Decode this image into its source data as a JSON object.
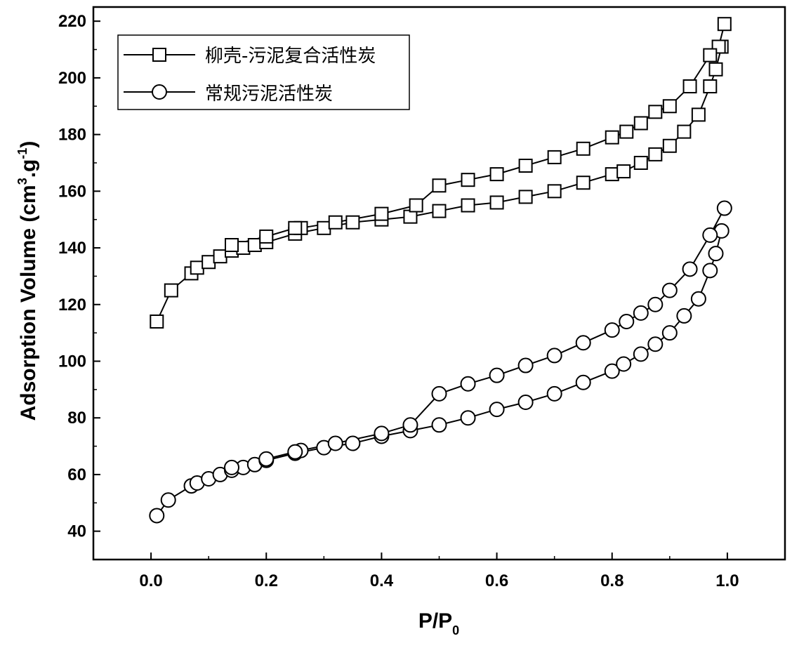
{
  "chart_data": {
    "type": "line",
    "xlabel": "P/P",
    "xlabel_sub": "0",
    "ylabel": "Adsorption Volume (cm",
    "ylabel_sup1": "3",
    "ylabel_mid": ".g",
    "ylabel_sup2": "-1",
    "ylabel_end": ")",
    "xlim": [
      -0.1,
      1.1
    ],
    "ylim": [
      30,
      225
    ],
    "xticks": [
      0.0,
      0.2,
      0.4,
      0.6,
      0.8,
      1.0
    ],
    "xtick_labels": [
      "0.0",
      "0.2",
      "0.4",
      "0.6",
      "0.8",
      "1.0"
    ],
    "yticks": [
      40,
      60,
      80,
      100,
      120,
      140,
      160,
      180,
      200,
      220
    ],
    "ytick_labels": [
      "40",
      "60",
      "80",
      "100",
      "120",
      "140",
      "160",
      "180",
      "200",
      "220"
    ],
    "grid": false,
    "legend_position": "top-left",
    "series": [
      {
        "name": "柳壳-污泥复合活性炭",
        "marker": "square",
        "segments": [
          {
            "part": "adsorption",
            "x": [
              0.01,
              0.035,
              0.07,
              0.08,
              0.1,
              0.12,
              0.14,
              0.16,
              0.18,
              0.2,
              0.25,
              0.3,
              0.35,
              0.4,
              0.45,
              0.5,
              0.55,
              0.6,
              0.65,
              0.7,
              0.75,
              0.8,
              0.82,
              0.85,
              0.875,
              0.9,
              0.925,
              0.95,
              0.97,
              0.98,
              0.99
            ],
            "y": [
              114,
              125,
              131,
              133,
              135,
              137,
              139,
              140,
              141,
              142,
              145,
              147,
              149,
              150,
              151,
              153,
              155,
              156,
              158,
              160,
              163,
              166,
              167,
              170,
              173,
              176,
              181,
              187,
              197,
              203,
              211
            ]
          },
          {
            "part": "desorption",
            "x": [
              0.995,
              0.985,
              0.97,
              0.935,
              0.9,
              0.875,
              0.85,
              0.825,
              0.8,
              0.75,
              0.7,
              0.65,
              0.6,
              0.55,
              0.5,
              0.46,
              0.4,
              0.32,
              0.26,
              0.25,
              0.2,
              0.14
            ],
            "y": [
              219,
              211,
              208,
              197,
              190,
              188,
              184,
              181,
              179,
              175,
              172,
              169,
              166,
              164,
              162,
              155,
              152,
              149,
              147,
              147,
              144,
              141
            ]
          }
        ]
      },
      {
        "name": "常规污泥活性炭",
        "marker": "circle",
        "segments": [
          {
            "part": "adsorption",
            "x": [
              0.01,
              0.03,
              0.07,
              0.08,
              0.1,
              0.12,
              0.14,
              0.16,
              0.18,
              0.2,
              0.25,
              0.3,
              0.35,
              0.4,
              0.45,
              0.5,
              0.55,
              0.6,
              0.65,
              0.7,
              0.75,
              0.8,
              0.82,
              0.85,
              0.875,
              0.9,
              0.925,
              0.95,
              0.97,
              0.98,
              0.99
            ],
            "y": [
              45.5,
              51,
              56,
              57,
              58.5,
              60,
              61.5,
              62.5,
              63.5,
              65,
              67.5,
              69.5,
              71,
              73.5,
              75.5,
              77.5,
              80,
              83,
              85.5,
              88.5,
              92.5,
              96.5,
              99,
              102.5,
              106,
              110,
              116,
              122,
              132,
              138,
              146
            ]
          },
          {
            "part": "desorption",
            "x": [
              0.995,
              0.97,
              0.935,
              0.9,
              0.875,
              0.85,
              0.825,
              0.8,
              0.75,
              0.7,
              0.65,
              0.6,
              0.55,
              0.5,
              0.45,
              0.4,
              0.32,
              0.26,
              0.25,
              0.2,
              0.14
            ],
            "y": [
              154,
              144.5,
              132.5,
              125,
              120,
              117,
              114,
              111,
              106.5,
              102,
              98.5,
              95,
              92,
              88.5,
              77.5,
              74.5,
              71,
              68.5,
              68,
              65.5,
              62.5
            ]
          }
        ]
      }
    ]
  }
}
